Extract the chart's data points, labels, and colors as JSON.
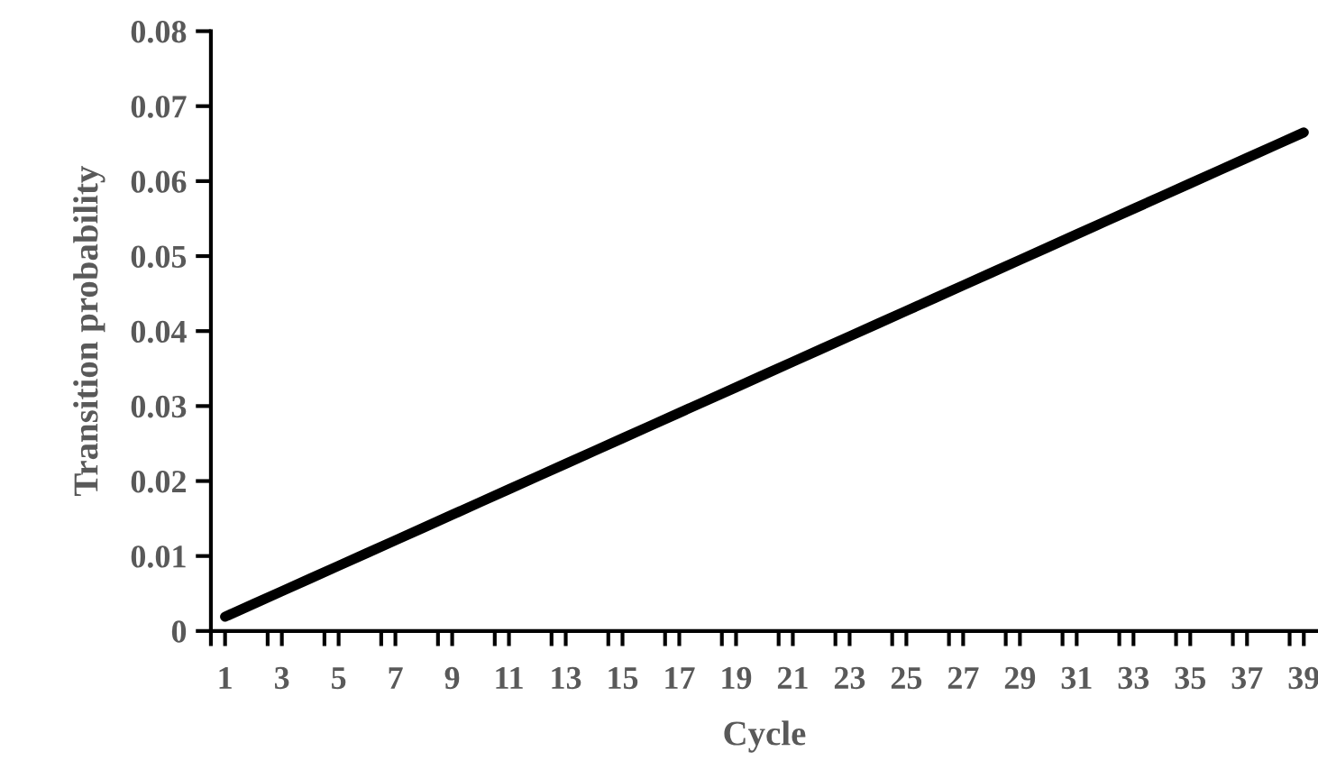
{
  "chart_data": {
    "type": "line",
    "xlabel": "Cycle",
    "ylabel": "Transition probability",
    "x": [
      1,
      2,
      3,
      4,
      5,
      6,
      7,
      8,
      9,
      10,
      11,
      12,
      13,
      14,
      15,
      16,
      17,
      18,
      19,
      20,
      21,
      22,
      23,
      24,
      25,
      26,
      27,
      28,
      29,
      30,
      31,
      32,
      33,
      34,
      35,
      36,
      37,
      38,
      39
    ],
    "series": [
      {
        "color": "#000000",
        "values": [
          0.0019,
          0.0036,
          0.0053,
          0.007,
          0.0087,
          0.0104,
          0.0121,
          0.0138,
          0.0155,
          0.0172,
          0.0189,
          0.0206,
          0.0223,
          0.024,
          0.0257,
          0.0274,
          0.0291,
          0.0308,
          0.0325,
          0.0342,
          0.0359,
          0.0376,
          0.0393,
          0.041,
          0.0427,
          0.0444,
          0.0461,
          0.0478,
          0.0495,
          0.0512,
          0.0529,
          0.0546,
          0.0563,
          0.058,
          0.0597,
          0.0614,
          0.0631,
          0.0648,
          0.0665
        ]
      }
    ],
    "xlim": [
      0.5,
      39.5
    ],
    "xticks": [
      {
        "value": 0.5,
        "label": null
      },
      1,
      {
        "value": 2.5,
        "label": null
      },
      3,
      {
        "value": 4.5,
        "label": null
      },
      5,
      {
        "value": 6.5,
        "label": null
      },
      7,
      {
        "value": 8.5,
        "label": null
      },
      9,
      {
        "value": 10.5,
        "label": null
      },
      11,
      {
        "value": 12.5,
        "label": null
      },
      13,
      {
        "value": 14.5,
        "label": null
      },
      15,
      {
        "value": 16.5,
        "label": null
      },
      17,
      {
        "value": 18.5,
        "label": null
      },
      19,
      {
        "value": 20.5,
        "label": null
      },
      21,
      {
        "value": 22.5,
        "label": null
      },
      23,
      {
        "value": 24.5,
        "label": null
      },
      25,
      {
        "value": 26.5,
        "label": null
      },
      27,
      {
        "value": 28.5,
        "label": null
      },
      29,
      {
        "value": 30.5,
        "label": null
      },
      31,
      {
        "value": 32.5,
        "label": null
      },
      33,
      {
        "value": 34.5,
        "label": null
      },
      35,
      {
        "value": 36.5,
        "label": null
      },
      37,
      {
        "value": 38.5,
        "label": null
      },
      39
    ],
    "ylim": [
      0,
      0.08
    ],
    "yticks": [
      0,
      0.01,
      0.02,
      0.03,
      0.04,
      0.05,
      0.06,
      0.07,
      0.08
    ],
    "grid": false,
    "legend": false,
    "marker": "none",
    "line_style": "solid"
  }
}
